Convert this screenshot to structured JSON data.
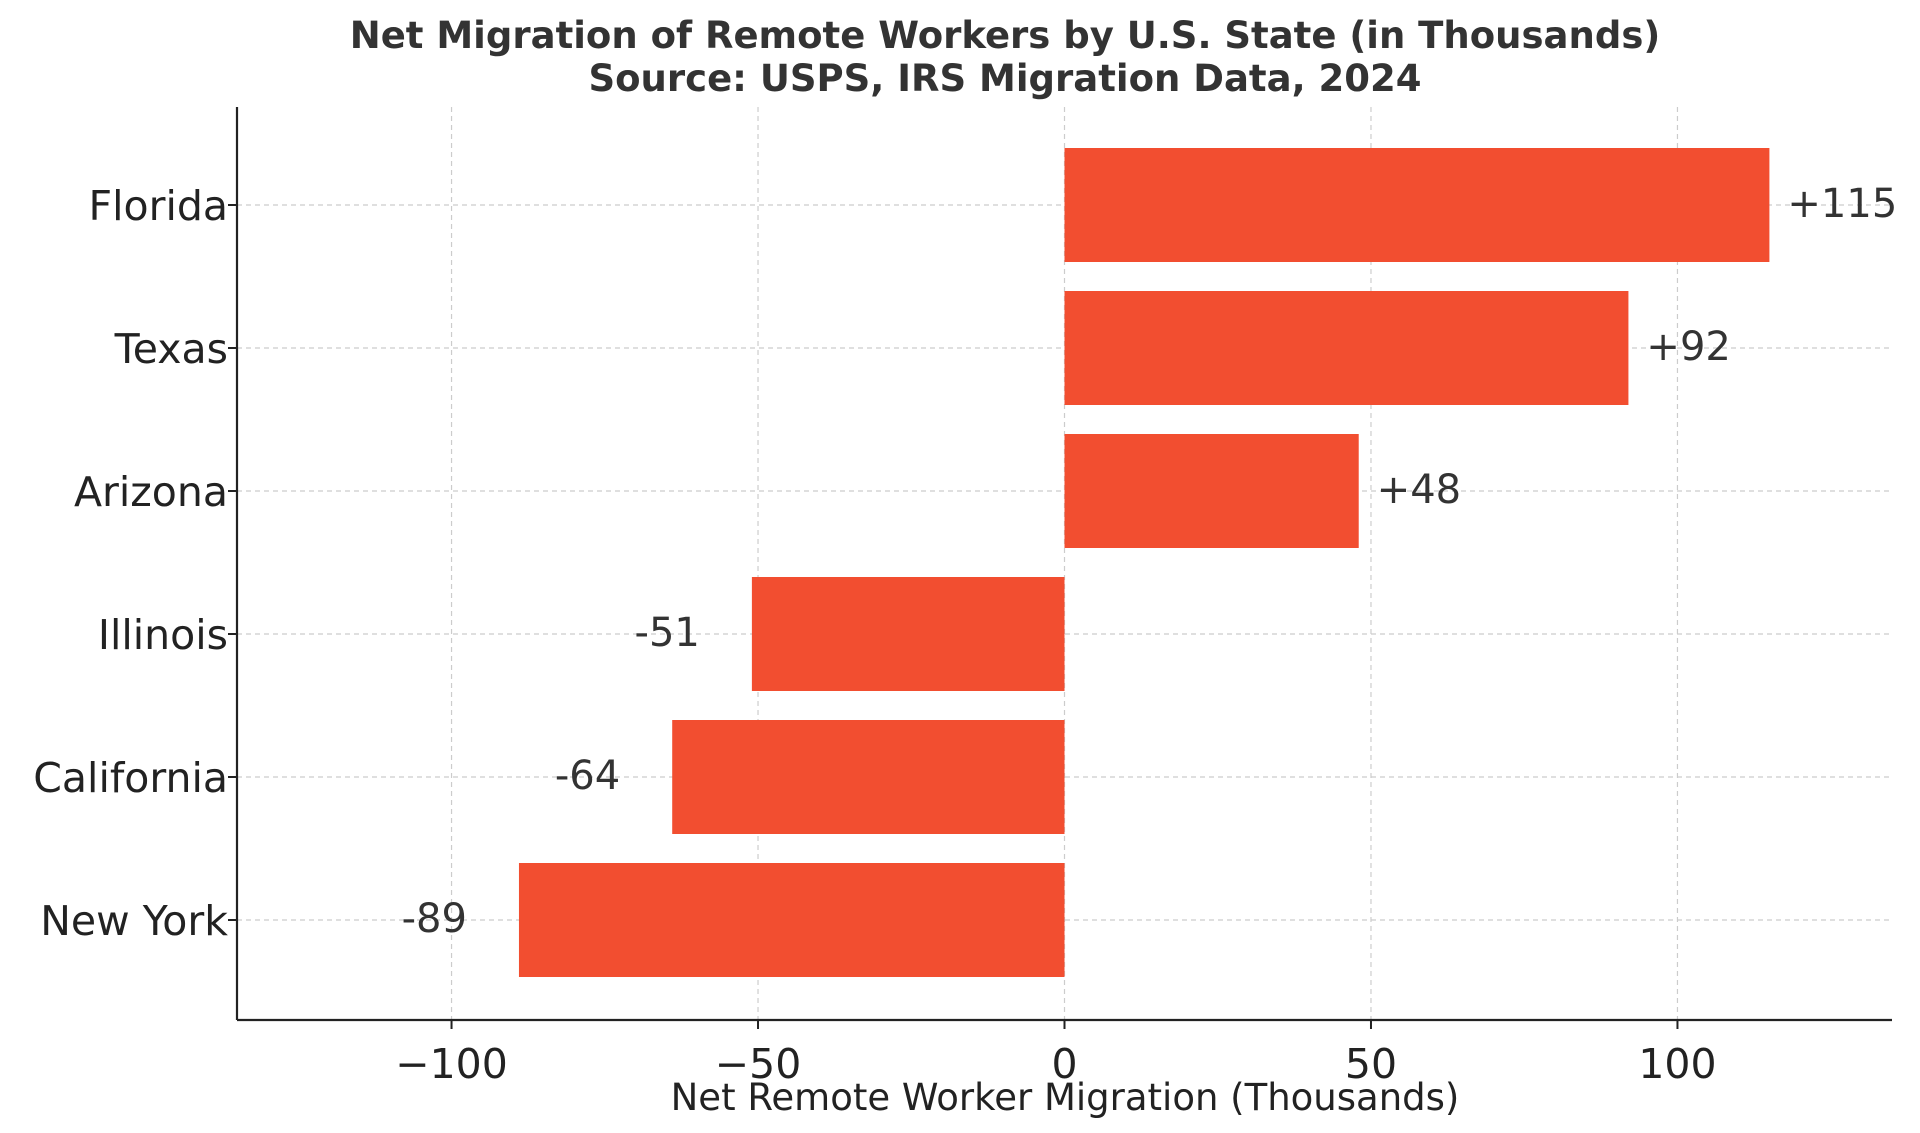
{
  "chart_data": {
    "type": "bar",
    "orientation": "horizontal",
    "title": "Net Migration of Remote Workers by U.S. State (in Thousands)",
    "subtitle": "Source: USPS, IRS Migration Data, 2024",
    "xlabel": "Net Remote Worker Migration (Thousands)",
    "ylabel": "",
    "categories": [
      "Florida",
      "Texas",
      "Arizona",
      "Illinois",
      "California",
      "New York"
    ],
    "values": [
      115,
      92,
      48,
      -51,
      -64,
      -89
    ],
    "data_labels": [
      "+115",
      "+92",
      "+48",
      "-51",
      "-64",
      "-89"
    ],
    "xlim": [
      -135,
      135
    ],
    "xticks": [
      -100,
      -50,
      0,
      50,
      100
    ],
    "xtick_labels": [
      "−100",
      "−50",
      "0",
      "50",
      "100"
    ],
    "grid": true,
    "bar_color": "#f24e30"
  }
}
